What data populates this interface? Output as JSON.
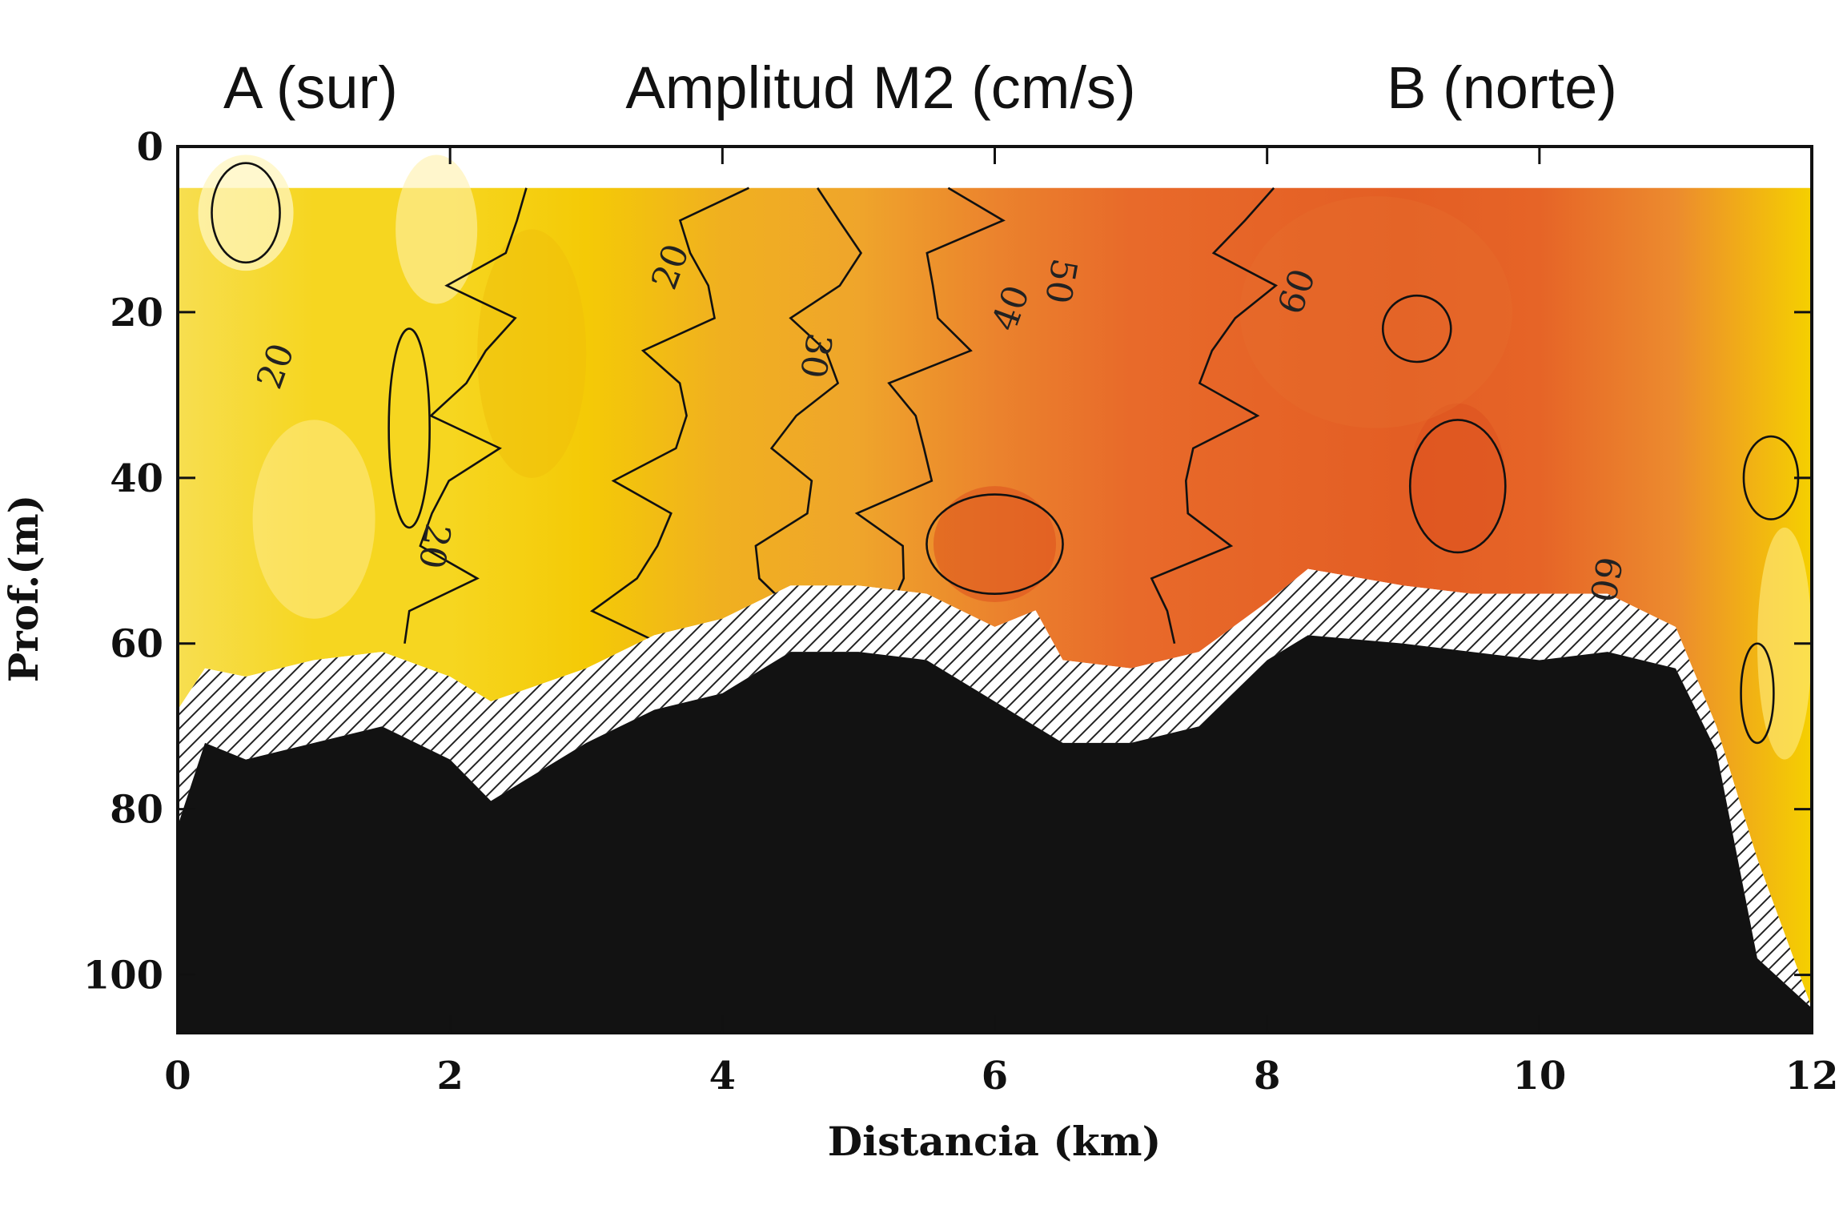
{
  "header": {
    "left_label": "A (sur)",
    "center_label": "Amplitud M2 (cm/s)",
    "right_label": "B (norte)"
  },
  "colors": {
    "low": "#f5d000",
    "mid": "#eea030",
    "high": "#e86a2a",
    "peak": "#e05520",
    "seabed": "#121212",
    "hatch": "#222222"
  },
  "chart_data": {
    "type": "heatmap",
    "title": "Amplitud M2 (cm/s)",
    "xlabel": "Distancia (km)",
    "ylabel": "Prof.(m)",
    "xlim": [
      0,
      12
    ],
    "ylim": [
      107,
      0
    ],
    "x_ticks": [
      0,
      2,
      4,
      6,
      8,
      10,
      12
    ],
    "y_ticks": [
      0,
      20,
      40,
      60,
      80,
      100
    ],
    "x_tick_labels": [
      "0",
      "2",
      "4",
      "6",
      "8",
      "10",
      "12"
    ],
    "y_tick_labels": [
      "0",
      "20",
      "40",
      "60",
      "80",
      "100"
    ],
    "annotations": {
      "left_end": "A (sur)",
      "right_end": "B (norte)"
    },
    "data_top_depth": 5,
    "amplitude_by_distance": {
      "x": [
        0,
        1,
        2,
        3,
        4,
        5,
        6,
        7,
        8,
        9,
        10,
        11,
        12
      ],
      "values": [
        15,
        18,
        18,
        22,
        30,
        40,
        52,
        58,
        60,
        62,
        60,
        50,
        20
      ]
    },
    "contour_levels": [
      20,
      30,
      40,
      50,
      60
    ],
    "contour_labels": [
      {
        "text": "20",
        "x": 0.8,
        "y": 27
      },
      {
        "text": "20",
        "x": 1.8,
        "y": 48
      },
      {
        "text": "20",
        "x": 3.7,
        "y": 15
      },
      {
        "text": "30",
        "x": 4.6,
        "y": 25
      },
      {
        "text": "40",
        "x": 6.2,
        "y": 20
      },
      {
        "text": "50",
        "x": 6.4,
        "y": 16
      },
      {
        "text": "60",
        "x": 8.3,
        "y": 18
      },
      {
        "text": "60",
        "x": 10.4,
        "y": 52
      }
    ],
    "data_bottom": {
      "x": [
        0,
        0.2,
        0.5,
        1,
        1.5,
        2,
        2.3,
        3,
        3.5,
        4,
        4.5,
        5,
        5.5,
        6,
        6.3,
        6.5,
        7,
        7.5,
        8,
        8.3,
        9,
        9.5,
        10,
        10.5,
        11,
        11.3,
        11.6,
        12
      ],
      "depth": [
        68,
        63,
        64,
        62,
        61,
        64,
        67,
        63,
        59,
        57,
        53,
        53,
        54,
        58,
        56,
        62,
        63,
        61,
        55,
        51,
        53,
        54,
        54,
        54,
        58,
        70,
        86,
        104
      ]
    },
    "seabed": {
      "x": [
        0,
        0.2,
        0.5,
        1,
        1.5,
        2,
        2.3,
        3,
        3.5,
        4,
        4.5,
        5,
        5.5,
        6,
        6.3,
        6.5,
        7,
        7.5,
        8,
        8.3,
        9,
        9.5,
        10,
        10.5,
        11,
        11.3,
        11.6,
        12
      ],
      "depth": [
        82,
        72,
        74,
        72,
        70,
        74,
        79,
        72,
        68,
        66,
        61,
        61,
        62,
        67,
        70,
        72,
        72,
        70,
        62,
        59,
        60,
        61,
        62,
        61,
        63,
        73,
        98,
        104
      ]
    }
  }
}
